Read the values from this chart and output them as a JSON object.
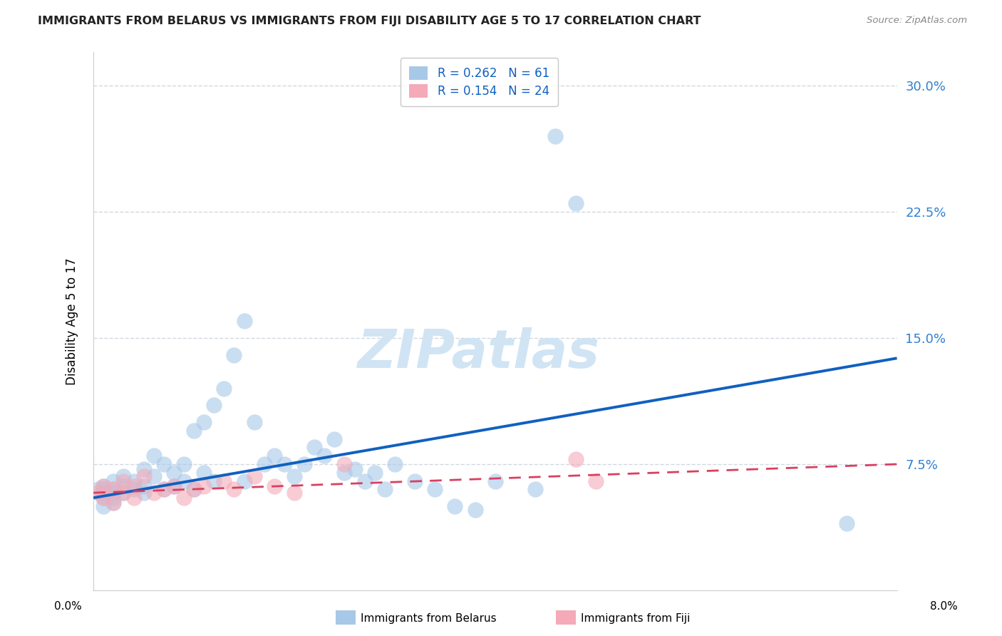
{
  "title": "IMMIGRANTS FROM BELARUS VS IMMIGRANTS FROM FIJI DISABILITY AGE 5 TO 17 CORRELATION CHART",
  "source": "Source: ZipAtlas.com",
  "ylabel": "Disability Age 5 to 17",
  "xlim": [
    0.0,
    0.08
  ],
  "ylim": [
    0.0,
    0.32
  ],
  "ytick_vals": [
    0.075,
    0.15,
    0.225,
    0.3
  ],
  "ytick_labels": [
    "7.5%",
    "15.0%",
    "22.5%",
    "30.0%"
  ],
  "legend1_r": "0.262",
  "legend1_n": "61",
  "legend2_r": "0.154",
  "legend2_n": "24",
  "series1_color": "#a8c8e8",
  "series2_color": "#f4aab8",
  "trendline1_color": "#1060c0",
  "trendline2_color": "#d84060",
  "watermark_color": "#d0e4f4",
  "title_color": "#222222",
  "source_color": "#888888",
  "ytick_color": "#3080d0",
  "grid_color": "#d0d8e0",
  "belarus_x": [
    0.0005,
    0.001,
    0.001,
    0.001,
    0.001,
    0.001,
    0.002,
    0.002,
    0.002,
    0.002,
    0.002,
    0.003,
    0.003,
    0.003,
    0.004,
    0.004,
    0.005,
    0.005,
    0.005,
    0.006,
    0.006,
    0.007,
    0.007,
    0.008,
    0.008,
    0.009,
    0.009,
    0.01,
    0.01,
    0.011,
    0.011,
    0.012,
    0.012,
    0.013,
    0.014,
    0.015,
    0.015,
    0.016,
    0.017,
    0.018,
    0.019,
    0.02,
    0.021,
    0.022,
    0.023,
    0.024,
    0.025,
    0.026,
    0.027,
    0.028,
    0.029,
    0.03,
    0.032,
    0.034,
    0.036,
    0.038,
    0.04,
    0.044,
    0.046,
    0.048,
    0.075
  ],
  "belarus_y": [
    0.06,
    0.062,
    0.058,
    0.055,
    0.05,
    0.06,
    0.065,
    0.058,
    0.06,
    0.055,
    0.052,
    0.062,
    0.068,
    0.058,
    0.065,
    0.06,
    0.072,
    0.058,
    0.062,
    0.068,
    0.08,
    0.075,
    0.06,
    0.07,
    0.062,
    0.075,
    0.065,
    0.095,
    0.06,
    0.1,
    0.07,
    0.11,
    0.065,
    0.12,
    0.14,
    0.16,
    0.065,
    0.1,
    0.075,
    0.08,
    0.075,
    0.068,
    0.075,
    0.085,
    0.08,
    0.09,
    0.07,
    0.072,
    0.065,
    0.07,
    0.06,
    0.075,
    0.065,
    0.06,
    0.05,
    0.048,
    0.065,
    0.06,
    0.27,
    0.23,
    0.04
  ],
  "fiji_x": [
    0.0005,
    0.001,
    0.001,
    0.002,
    0.002,
    0.003,
    0.003,
    0.004,
    0.004,
    0.005,
    0.006,
    0.007,
    0.008,
    0.009,
    0.01,
    0.011,
    0.013,
    0.014,
    0.016,
    0.018,
    0.02,
    0.025,
    0.048,
    0.05
  ],
  "fiji_y": [
    0.058,
    0.062,
    0.055,
    0.06,
    0.052,
    0.065,
    0.058,
    0.062,
    0.055,
    0.068,
    0.058,
    0.06,
    0.062,
    0.055,
    0.06,
    0.062,
    0.065,
    0.06,
    0.068,
    0.062,
    0.058,
    0.075,
    0.078,
    0.065
  ],
  "trendline1_x0": 0.0,
  "trendline1_y0": 0.055,
  "trendline1_x1": 0.08,
  "trendline1_y1": 0.138,
  "trendline2_x0": 0.0,
  "trendline2_y0": 0.058,
  "trendline2_x1": 0.08,
  "trendline2_y1": 0.075
}
